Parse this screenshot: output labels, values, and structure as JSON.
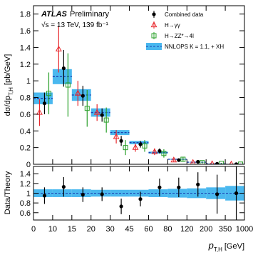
{
  "chart_data": {
    "type": "binned-errorbar",
    "annotations": {
      "experiment": "ATLAS",
      "status": "Preliminary",
      "energy": "√s = 13 TeV, 139 fb⁻¹"
    },
    "y_label": {
      "symbol": "dσ/dp",
      "subscript": "T,H",
      "unit": "[pb/GeV]"
    },
    "x_label": {
      "symbol": "p",
      "subscript": "T,H",
      "unit": "[GeV]"
    },
    "bin_edges": [
      0,
      10,
      15,
      20,
      30,
      45,
      60,
      80,
      120,
      200,
      350,
      1000
    ],
    "ylim": [
      0,
      1.9
    ],
    "yticks": [
      0,
      0.2,
      0.4,
      0.6,
      0.8,
      1,
      1.2,
      1.4,
      1.6,
      1.8
    ],
    "theory": {
      "name": "NNLOPS K = 1.1, + XH",
      "color": "#4ab8ef",
      "line_color": "#1a3fb0",
      "values": [
        0.79,
        1.05,
        0.83,
        0.62,
        0.38,
        0.26,
        0.14,
        0.06,
        0.025,
        0.006,
        0.0005
      ],
      "errors": [
        0.07,
        0.09,
        0.07,
        0.05,
        0.03,
        0.02,
        0.012,
        0.005,
        0.002,
        0.0006,
        0.0001
      ]
    },
    "series": [
      {
        "name": "Combined data",
        "color": "#000000",
        "marker": "circle",
        "values": [
          0.73,
          1.15,
          0.82,
          0.59,
          0.28,
          0.24,
          0.16,
          0.05,
          0.03,
          0.006,
          0.001
        ],
        "errors": [
          0.13,
          0.22,
          0.12,
          0.08,
          0.06,
          0.04,
          0.03,
          0.015,
          0.008,
          0.003,
          0.001
        ]
      },
      {
        "name": "H→γγ",
        "color": "#e8272c",
        "marker": "triangle",
        "values": [
          0.62,
          1.38,
          0.85,
          0.62,
          0.33,
          0.2,
          0.15,
          0.05,
          0.02,
          0.005,
          0.001
        ],
        "errors": [
          0.16,
          0.28,
          0.15,
          0.1,
          0.08,
          0.05,
          0.04,
          0.02,
          0.01,
          0.004,
          0.001
        ]
      },
      {
        "name": "H→ZZ*→4l",
        "color": "#2aa02a",
        "marker": "square",
        "values": [
          0.85,
          0.95,
          0.67,
          0.53,
          0.2,
          0.22,
          0.13,
          0.06,
          0.02,
          0.01,
          0.002
        ],
        "errors": [
          0.25,
          0.38,
          0.22,
          0.15,
          0.09,
          0.07,
          0.05,
          0.025,
          0.012,
          0.006,
          0.002
        ]
      }
    ],
    "ratio": {
      "y_label": "Data/Theory",
      "ylim": [
        0.45,
        1.55
      ],
      "yticks": [
        0.6,
        0.8,
        1,
        1.2,
        1.4
      ],
      "values": [
        0.95,
        1.13,
        0.97,
        0.98,
        0.73,
        0.88,
        1.12,
        1.12,
        1.18,
        0.98,
        1.0
      ],
      "errors": [
        0.17,
        0.2,
        0.15,
        0.14,
        0.16,
        0.15,
        0.18,
        0.2,
        0.25,
        0.4,
        0.9
      ],
      "band": [
        0.08,
        0.08,
        0.08,
        0.07,
        0.07,
        0.07,
        0.08,
        0.09,
        0.1,
        0.12,
        0.15
      ],
      "reference": 1
    }
  }
}
